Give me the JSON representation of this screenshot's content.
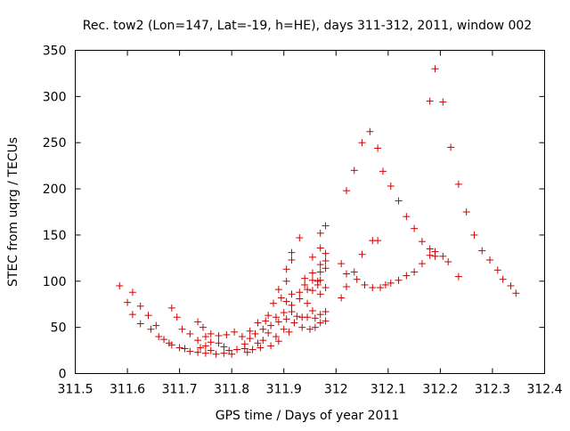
{
  "chart_data": {
    "type": "scatter",
    "title": "Rec. tow2 (Lon=147, Lat=-19, h=HE), days 311-312, 2011, window 002",
    "xlabel": "GPS time / Days of year 2011",
    "ylabel": "STEC from uqrg / TECUs",
    "xlim": [
      311.5,
      312.4
    ],
    "ylim": [
      0,
      350
    ],
    "xticks": [
      "311.5",
      "311.6",
      "311.7",
      "311.8",
      "311.9",
      "312",
      "312.1",
      "312.2",
      "312.3",
      "312.4"
    ],
    "yticks": [
      "0",
      "50",
      "100",
      "150",
      "200",
      "250",
      "300",
      "350"
    ],
    "grid": false,
    "marker": "+",
    "color": "#cc0000",
    "points": [
      [
        311.585,
        95
      ],
      [
        311.6,
        77
      ],
      [
        311.61,
        88
      ],
      [
        311.61,
        64
      ],
      [
        311.625,
        73
      ],
      [
        311.625,
        54
      ],
      [
        311.64,
        63
      ],
      [
        311.645,
        48
      ],
      [
        311.655,
        52
      ],
      [
        311.66,
        40
      ],
      [
        311.67,
        37
      ],
      [
        311.68,
        33
      ],
      [
        311.685,
        71
      ],
      [
        311.685,
        31
      ],
      [
        311.695,
        61
      ],
      [
        311.7,
        28
      ],
      [
        311.705,
        48
      ],
      [
        311.71,
        27
      ],
      [
        311.72,
        43
      ],
      [
        311.72,
        24
      ],
      [
        311.735,
        56
      ],
      [
        311.735,
        36
      ],
      [
        311.735,
        23
      ],
      [
        311.74,
        28
      ],
      [
        311.745,
        50
      ],
      [
        311.75,
        40
      ],
      [
        311.75,
        30
      ],
      [
        311.75,
        22
      ],
      [
        311.76,
        43
      ],
      [
        311.76,
        34
      ],
      [
        311.76,
        25
      ],
      [
        311.77,
        21
      ],
      [
        311.775,
        41
      ],
      [
        311.775,
        33
      ],
      [
        311.785,
        29
      ],
      [
        311.785,
        22
      ],
      [
        311.79,
        42
      ],
      [
        311.795,
        25
      ],
      [
        311.8,
        21
      ],
      [
        311.805,
        45
      ],
      [
        311.81,
        26
      ],
      [
        311.82,
        40
      ],
      [
        311.825,
        32
      ],
      [
        311.825,
        27
      ],
      [
        311.83,
        23
      ],
      [
        311.835,
        46
      ],
      [
        311.835,
        38
      ],
      [
        311.84,
        26
      ],
      [
        311.845,
        43
      ],
      [
        311.85,
        55
      ],
      [
        311.85,
        33
      ],
      [
        311.855,
        28
      ],
      [
        311.86,
        48
      ],
      [
        311.86,
        36
      ],
      [
        311.865,
        57
      ],
      [
        311.87,
        63
      ],
      [
        311.87,
        44
      ],
      [
        311.875,
        30
      ],
      [
        311.875,
        52
      ],
      [
        311.88,
        76
      ],
      [
        311.885,
        61
      ],
      [
        311.885,
        40
      ],
      [
        311.89,
        91
      ],
      [
        311.89,
        56
      ],
      [
        311.89,
        35
      ],
      [
        311.895,
        82
      ],
      [
        311.9,
        66
      ],
      [
        311.9,
        48
      ],
      [
        311.905,
        113
      ],
      [
        311.905,
        100
      ],
      [
        311.905,
        78
      ],
      [
        311.905,
        59
      ],
      [
        311.91,
        45
      ],
      [
        311.915,
        131
      ],
      [
        311.915,
        123
      ],
      [
        311.915,
        86
      ],
      [
        311.915,
        74
      ],
      [
        311.915,
        67
      ],
      [
        311.92,
        55
      ],
      [
        311.925,
        62
      ],
      [
        311.93,
        147
      ],
      [
        311.93,
        88
      ],
      [
        311.93,
        81
      ],
      [
        311.935,
        61
      ],
      [
        311.935,
        50
      ],
      [
        311.94,
        103
      ],
      [
        311.94,
        96
      ],
      [
        311.945,
        91
      ],
      [
        311.945,
        76
      ],
      [
        311.945,
        61
      ],
      [
        311.95,
        48
      ],
      [
        311.955,
        126
      ],
      [
        311.955,
        109
      ],
      [
        311.955,
        101
      ],
      [
        311.955,
        90
      ],
      [
        311.955,
        68
      ],
      [
        311.96,
        60
      ],
      [
        311.96,
        50
      ],
      [
        311.965,
        100
      ],
      [
        311.965,
        96
      ],
      [
        311.97,
        152
      ],
      [
        311.97,
        136
      ],
      [
        311.97,
        118
      ],
      [
        311.97,
        110
      ],
      [
        311.97,
        101
      ],
      [
        311.97,
        86
      ],
      [
        311.97,
        64
      ],
      [
        311.97,
        55
      ],
      [
        311.98,
        160
      ],
      [
        311.98,
        130
      ],
      [
        311.98,
        122
      ],
      [
        311.98,
        114
      ],
      [
        311.98,
        93
      ],
      [
        311.98,
        67
      ],
      [
        311.98,
        57
      ],
      [
        312.01,
        119
      ],
      [
        312.01,
        82
      ],
      [
        312.02,
        198
      ],
      [
        312.02,
        108
      ],
      [
        312.02,
        94
      ],
      [
        312.035,
        220
      ],
      [
        312.035,
        110
      ],
      [
        312.04,
        102
      ],
      [
        312.05,
        250
      ],
      [
        312.05,
        129
      ],
      [
        312.055,
        96
      ],
      [
        312.065,
        262
      ],
      [
        312.07,
        144
      ],
      [
        312.07,
        93
      ],
      [
        312.08,
        244
      ],
      [
        312.08,
        144
      ],
      [
        312.085,
        93
      ],
      [
        312.09,
        219
      ],
      [
        312.095,
        96
      ],
      [
        312.105,
        203
      ],
      [
        312.105,
        98
      ],
      [
        312.12,
        187
      ],
      [
        312.12,
        101
      ],
      [
        312.135,
        170
      ],
      [
        312.135,
        106
      ],
      [
        312.15,
        157
      ],
      [
        312.15,
        110
      ],
      [
        312.165,
        143
      ],
      [
        312.165,
        119
      ],
      [
        312.18,
        295
      ],
      [
        312.18,
        135
      ],
      [
        312.18,
        128
      ],
      [
        312.19,
        330
      ],
      [
        312.19,
        132
      ],
      [
        312.19,
        127
      ],
      [
        312.205,
        294
      ],
      [
        312.205,
        127
      ],
      [
        312.215,
        121
      ],
      [
        312.22,
        245
      ],
      [
        312.235,
        205
      ],
      [
        312.235,
        105
      ],
      [
        312.25,
        175
      ],
      [
        312.265,
        150
      ],
      [
        312.28,
        133
      ],
      [
        312.295,
        123
      ],
      [
        312.31,
        112
      ],
      [
        312.32,
        102
      ],
      [
        312.335,
        95
      ],
      [
        312.345,
        87
      ]
    ]
  }
}
